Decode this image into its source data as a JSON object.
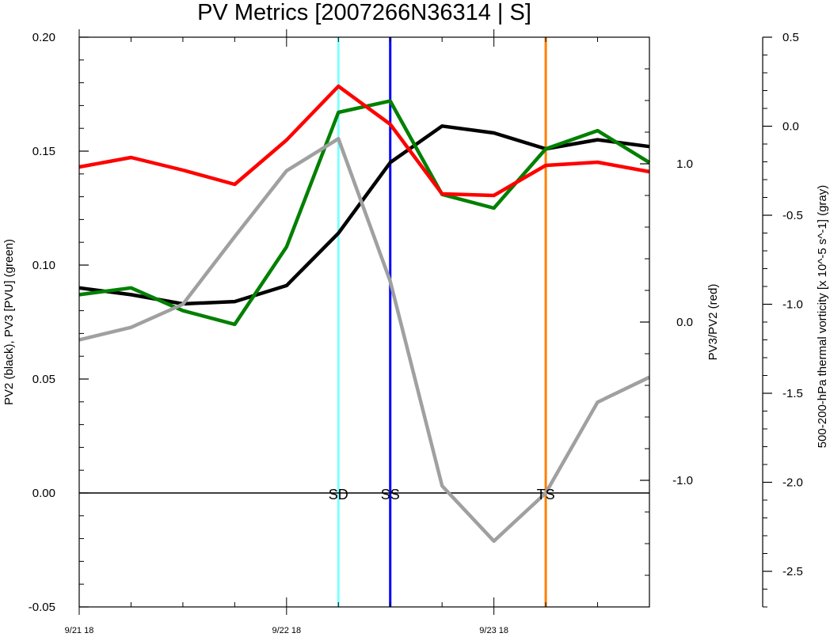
{
  "chart_data": {
    "type": "line",
    "title": "PV Metrics [2007266N36314 | S]",
    "x_tick_labels": [
      "9/21 18",
      "9/22 18",
      "9/23 18"
    ],
    "x_tick_index": [
      0,
      4,
      8
    ],
    "x_count": 12,
    "left_axis": {
      "label": "PV2 (black), PV3 [PVU] (green)",
      "ylim": [
        -0.05,
        0.2
      ],
      "ticks": [
        -0.05,
        0.0,
        0.05,
        0.1,
        0.15,
        0.2
      ],
      "tick_labels": [
        "-0.05",
        "0.00",
        "0.05",
        "0.10",
        "0.15",
        "0.20"
      ]
    },
    "inner_right_axis": {
      "label": "PV3/PV2 (red)",
      "ylim": [
        -1.8,
        1.8
      ],
      "ticks": [
        -1.0,
        0.0,
        1.0
      ],
      "tick_labels": [
        "-1.0",
        "0.0",
        "1.0"
      ]
    },
    "outer_right_axis": {
      "label": "500-200-hPa thermal vorticity [x 10^-5 s^-1] (gray)",
      "ylim": [
        -2.7,
        0.5
      ],
      "ticks": [
        0.5,
        0.0,
        -0.5,
        -1.0,
        -1.5,
        -2.0,
        -2.5
      ],
      "tick_labels": [
        "0.5",
        "0.0",
        "-0.5",
        "-1.0",
        "-1.5",
        "-2.0",
        "-2.5"
      ]
    },
    "series": [
      {
        "color": "#000000",
        "axis": "left",
        "values": [
          0.09,
          0.087,
          0.083,
          0.084,
          0.091,
          0.114,
          0.145,
          0.161,
          0.158,
          0.151,
          0.155,
          0.152
        ]
      },
      {
        "color": "#008000",
        "axis": "left",
        "values": [
          0.087,
          0.09,
          0.08,
          0.074,
          0.108,
          0.167,
          0.172,
          0.131,
          0.125,
          0.151,
          0.159,
          0.145
        ]
      },
      {
        "color": "#ff0000",
        "axis": "inner_right",
        "values": [
          0.98,
          1.04,
          0.96,
          0.87,
          1.15,
          1.49,
          1.25,
          0.81,
          0.8,
          0.99,
          1.01,
          0.95
        ]
      },
      {
        "color": "#a0a0a0",
        "axis": "outer_right",
        "values": [
          -1.2,
          -1.13,
          -1.0,
          -0.62,
          -0.25,
          -0.07,
          -0.87,
          -2.02,
          -2.33,
          -2.06,
          -1.55,
          -1.41
        ]
      }
    ],
    "zero_line": 0.0,
    "events": [
      {
        "label": "SD",
        "x": 5,
        "color": "#7fffff"
      },
      {
        "label": "SS",
        "x": 6,
        "color": "#0000ff"
      },
      {
        "label": "TS",
        "x": 9,
        "color": "#ff8000"
      }
    ],
    "grid": false
  }
}
